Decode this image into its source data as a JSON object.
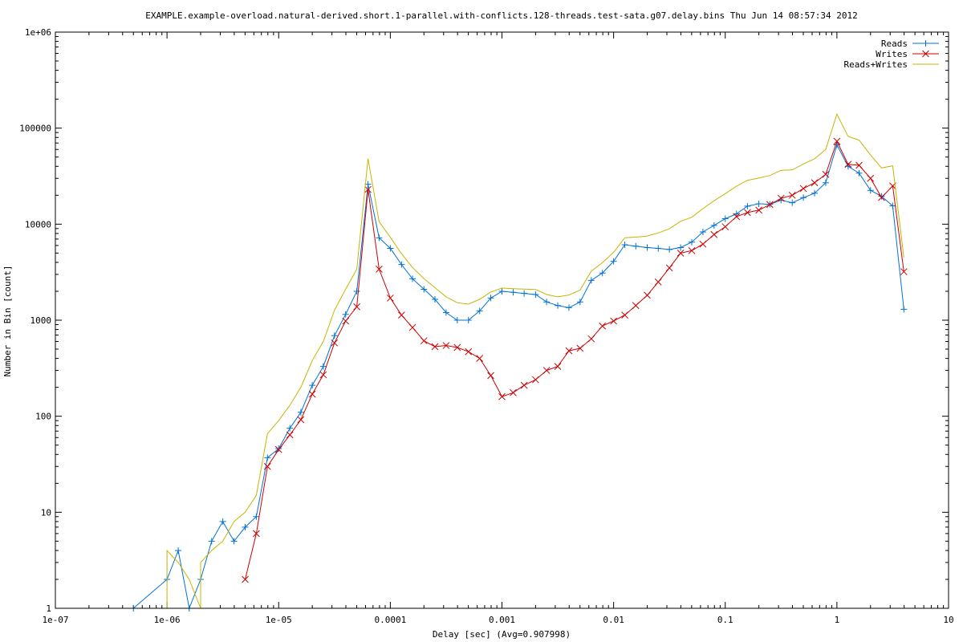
{
  "chart_data": {
    "type": "line",
    "title": "EXAMPLE.example-overload.natural-derived.short.1-parallel.with-conflicts.128-threads.test-sata.g07.delay.bins Thu Jun 14 08:57:34 2012",
    "xlabel": "Delay [sec]  (Avg=0.907998)",
    "ylabel": "Number in Bin [count]",
    "xscale": "log",
    "yscale": "log",
    "xlim": [
      1e-07,
      10
    ],
    "ylim": [
      1,
      1000000
    ],
    "legend_position": "top-right",
    "x_tick_labels": [
      "1e-07",
      "1e-06",
      "1e-05",
      "0.0001",
      "0.001",
      "0.01",
      "0.1",
      "1",
      "10"
    ],
    "y_tick_labels": [
      "1",
      "10",
      "100",
      "1000",
      "10000",
      "100000",
      "1e+06"
    ],
    "series": [
      {
        "name": "Reads",
        "color": "#0072d4",
        "marker": "plus",
        "points": [
          [
            5e-07,
            1
          ],
          [
            1e-06,
            2
          ],
          [
            1.26e-06,
            4
          ],
          [
            1.58e-06,
            1
          ],
          [
            2e-06,
            2
          ],
          [
            2.51e-06,
            5
          ],
          [
            3.16e-06,
            8
          ],
          [
            3.98e-06,
            5
          ],
          [
            5.01e-06,
            7
          ],
          [
            6.31e-06,
            9
          ],
          [
            7.94e-06,
            37
          ],
          [
            1e-05,
            46
          ],
          [
            1.26e-05,
            75
          ],
          [
            1.58e-05,
            110
          ],
          [
            2e-05,
            210
          ],
          [
            2.51e-05,
            330
          ],
          [
            3.16e-05,
            690
          ],
          [
            3.98e-05,
            1150
          ],
          [
            5.01e-05,
            2000
          ],
          [
            6.31e-05,
            26000
          ],
          [
            7.94e-05,
            7200
          ],
          [
            0.0001,
            5600
          ],
          [
            0.000126,
            3800
          ],
          [
            0.000158,
            2700
          ],
          [
            0.0002,
            2100
          ],
          [
            0.000251,
            1650
          ],
          [
            0.000316,
            1200
          ],
          [
            0.000398,
            1000
          ],
          [
            0.000501,
            1000
          ],
          [
            0.000631,
            1250
          ],
          [
            0.000794,
            1700
          ],
          [
            0.001,
            2000
          ],
          [
            0.00126,
            1950
          ],
          [
            0.00158,
            1900
          ],
          [
            0.002,
            1850
          ],
          [
            0.00251,
            1550
          ],
          [
            0.00316,
            1420
          ],
          [
            0.00398,
            1350
          ],
          [
            0.00501,
            1550
          ],
          [
            0.00631,
            2600
          ],
          [
            0.00794,
            3100
          ],
          [
            0.01,
            4100
          ],
          [
            0.0126,
            6100
          ],
          [
            0.0158,
            5900
          ],
          [
            0.02,
            5700
          ],
          [
            0.0251,
            5600
          ],
          [
            0.0316,
            5450
          ],
          [
            0.0398,
            5700
          ],
          [
            0.0501,
            6500
          ],
          [
            0.0631,
            8300
          ],
          [
            0.0794,
            9700
          ],
          [
            0.1,
            11400
          ],
          [
            0.126,
            12800
          ],
          [
            0.158,
            15400
          ],
          [
            0.2,
            16300
          ],
          [
            0.251,
            16100
          ],
          [
            0.316,
            17800
          ],
          [
            0.398,
            16700
          ],
          [
            0.501,
            18900
          ],
          [
            0.631,
            21000
          ],
          [
            0.794,
            27000
          ],
          [
            1.0,
            67000
          ],
          [
            1.26,
            40000
          ],
          [
            1.58,
            34000
          ],
          [
            2.0,
            22500
          ],
          [
            2.51,
            19500
          ],
          [
            3.16,
            15500
          ],
          [
            3.98,
            1300
          ]
        ]
      },
      {
        "name": "Writes",
        "color": "#cc0000",
        "marker": "cross",
        "points": [
          [
            5.01e-06,
            2
          ],
          [
            6.31e-06,
            6
          ],
          [
            7.94e-06,
            30
          ],
          [
            1e-05,
            45
          ],
          [
            1.26e-05,
            64
          ],
          [
            1.58e-05,
            92
          ],
          [
            2e-05,
            170
          ],
          [
            2.51e-05,
            270
          ],
          [
            3.16e-05,
            580
          ],
          [
            3.98e-05,
            980
          ],
          [
            5.01e-05,
            1380
          ],
          [
            6.31e-05,
            23000
          ],
          [
            7.94e-05,
            3400
          ],
          [
            0.0001,
            1700
          ],
          [
            0.000126,
            1130
          ],
          [
            0.000158,
            840
          ],
          [
            0.0002,
            610
          ],
          [
            0.000251,
            530
          ],
          [
            0.000316,
            545
          ],
          [
            0.000398,
            520
          ],
          [
            0.000501,
            470
          ],
          [
            0.000631,
            400
          ],
          [
            0.000794,
            265
          ],
          [
            0.001,
            160
          ],
          [
            0.00126,
            176
          ],
          [
            0.00158,
            210
          ],
          [
            0.002,
            240
          ],
          [
            0.00251,
            300
          ],
          [
            0.00316,
            330
          ],
          [
            0.00398,
            480
          ],
          [
            0.00501,
            510
          ],
          [
            0.00631,
            640
          ],
          [
            0.00794,
            870
          ],
          [
            0.01,
            980
          ],
          [
            0.0126,
            1130
          ],
          [
            0.0158,
            1420
          ],
          [
            0.02,
            1820
          ],
          [
            0.0251,
            2500
          ],
          [
            0.0316,
            3500
          ],
          [
            0.0398,
            5000
          ],
          [
            0.0501,
            5300
          ],
          [
            0.0631,
            6200
          ],
          [
            0.0794,
            7800
          ],
          [
            0.1,
            9400
          ],
          [
            0.126,
            12000
          ],
          [
            0.158,
            13200
          ],
          [
            0.2,
            14000
          ],
          [
            0.251,
            16000
          ],
          [
            0.316,
            18600
          ],
          [
            0.398,
            20000
          ],
          [
            0.501,
            23500
          ],
          [
            0.631,
            27000
          ],
          [
            0.794,
            33000
          ],
          [
            1.0,
            73000
          ],
          [
            1.26,
            42000
          ],
          [
            1.58,
            41000
          ],
          [
            2.0,
            30000
          ],
          [
            2.51,
            19000
          ],
          [
            3.16,
            25000
          ],
          [
            3.98,
            3200
          ]
        ]
      },
      {
        "name": "Reads+Writes",
        "color": "#c8b400",
        "marker": "none",
        "points": [
          [
            1e-06,
            1
          ],
          [
            1e-06,
            4
          ],
          [
            1.26e-06,
            3
          ],
          [
            1.58e-06,
            2
          ],
          [
            2e-06,
            1
          ],
          [
            2e-06,
            3
          ],
          [
            2.51e-06,
            4
          ],
          [
            3.16e-06,
            5
          ],
          [
            3.98e-06,
            8
          ],
          [
            5.01e-06,
            10
          ],
          [
            6.31e-06,
            15
          ],
          [
            7.94e-06,
            66
          ],
          [
            1e-05,
            90
          ],
          [
            1.26e-05,
            130
          ],
          [
            1.58e-05,
            200
          ],
          [
            2e-05,
            380
          ],
          [
            2.51e-05,
            600
          ],
          [
            3.16e-05,
            1270
          ],
          [
            3.98e-05,
            2100
          ],
          [
            5.01e-05,
            3400
          ],
          [
            6.31e-05,
            48000
          ],
          [
            7.94e-05,
            10600
          ],
          [
            0.0001,
            7300
          ],
          [
            0.000126,
            4930
          ],
          [
            0.000158,
            3540
          ],
          [
            0.0002,
            2710
          ],
          [
            0.000251,
            2180
          ],
          [
            0.000316,
            1750
          ],
          [
            0.000398,
            1520
          ],
          [
            0.000501,
            1470
          ],
          [
            0.000631,
            1650
          ],
          [
            0.000794,
            1970
          ],
          [
            0.001,
            2160
          ],
          [
            0.00126,
            2130
          ],
          [
            0.00158,
            2110
          ],
          [
            0.002,
            2090
          ],
          [
            0.00251,
            1850
          ],
          [
            0.00316,
            1750
          ],
          [
            0.00398,
            1830
          ],
          [
            0.00501,
            2060
          ],
          [
            0.00631,
            3240
          ],
          [
            0.00794,
            3970
          ],
          [
            0.01,
            5080
          ],
          [
            0.0126,
            7230
          ],
          [
            0.0158,
            7320
          ],
          [
            0.02,
            7520
          ],
          [
            0.0251,
            8100
          ],
          [
            0.0316,
            8950
          ],
          [
            0.0398,
            10700
          ],
          [
            0.0501,
            11800
          ],
          [
            0.0631,
            14500
          ],
          [
            0.0794,
            17500
          ],
          [
            0.1,
            20800
          ],
          [
            0.126,
            24800
          ],
          [
            0.158,
            28600
          ],
          [
            0.2,
            30300
          ],
          [
            0.251,
            32100
          ],
          [
            0.316,
            36400
          ],
          [
            0.398,
            36700
          ],
          [
            0.501,
            42400
          ],
          [
            0.631,
            48000
          ],
          [
            0.794,
            60000
          ],
          [
            1.0,
            140000
          ],
          [
            1.26,
            82000
          ],
          [
            1.58,
            75000
          ],
          [
            2.0,
            52500
          ],
          [
            2.51,
            38500
          ],
          [
            3.16,
            40500
          ],
          [
            3.98,
            4500
          ]
        ]
      }
    ]
  }
}
